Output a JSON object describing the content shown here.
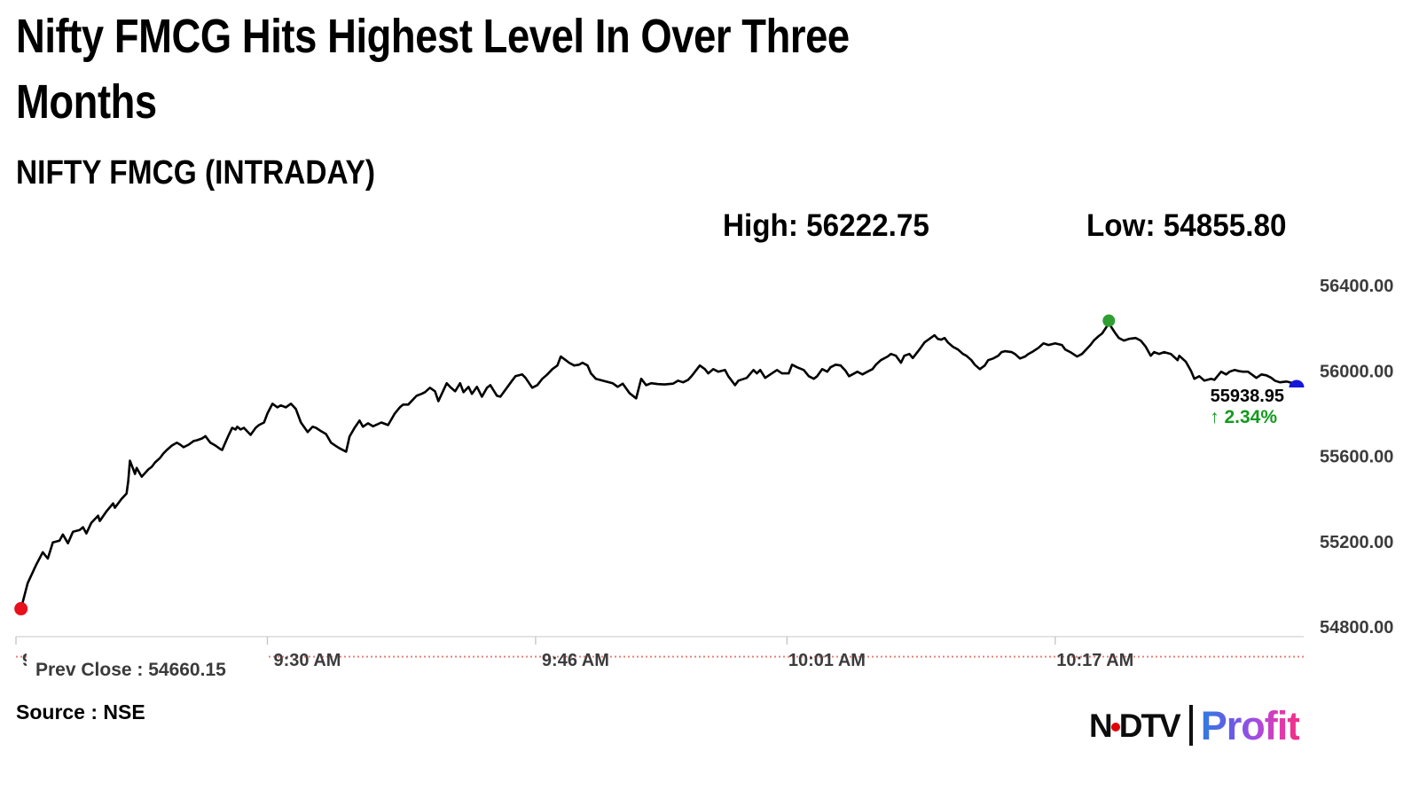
{
  "header": {
    "title_line1": "Nifty FMCG Hits Highest Level In Over Three",
    "title_line2": "Months",
    "subtitle": "NIFTY FMCG (INTRADAY)"
  },
  "stats": {
    "high": "High: 56222.75",
    "low": "Low: 54855.80"
  },
  "annotation": {
    "last_value": "55938.95",
    "change": "↑ 2.34%"
  },
  "footer": {
    "source": "Source : NSE"
  },
  "logo": {
    "ndtv_n": "N",
    "ndtv_dtv": "DTV",
    "profit": "Profit"
  },
  "colors": {
    "line": "#000000",
    "axis": "#d2d2d2",
    "tick": "#c4c4c4",
    "axis_label": "#3c3c3c",
    "prev_close_line": "#e2837b",
    "prev_close_text": "#3a3a3a",
    "first_marker": "#e8101c",
    "high_marker": "#2f9e33",
    "last_marker": "#1518d8",
    "change_green": "#149a1e",
    "profit_gradient_start": "#2e7de0",
    "profit_gradient_end": "#f42e86"
  },
  "chart_data": {
    "type": "line",
    "title": "NIFTY FMCG (INTRADAY)",
    "grid": false,
    "legend": "none",
    "line_color": "#000000",
    "y_axis": {
      "side": "right",
      "ticks": [
        56400,
        56000,
        55600,
        55200,
        54800
      ],
      "ylim": [
        54660,
        56440
      ]
    },
    "x_axis": {
      "unit": "minutes after 9:15 AM",
      "total_minutes": 77,
      "ticks": [
        {
          "min": 0,
          "label": "9:15 AM"
        },
        {
          "min": 15,
          "label": "9:30 AM"
        },
        {
          "min": 31,
          "label": "9:46 AM"
        },
        {
          "min": 46,
          "label": "10:01 AM"
        },
        {
          "min": 62,
          "label": "10:17 AM"
        }
      ]
    },
    "high": 56222.75,
    "low": 54855.8,
    "last": 55938.95,
    "change_pct": 2.34,
    "prev_close": 54660.15,
    "prev_close_label": "Prev Close : 54660.15",
    "series_units": "[minutes_after_915, index_value]",
    "series": [
      [
        0.3,
        54885
      ],
      [
        0.7,
        55005
      ],
      [
        1.2,
        55090
      ],
      [
        1.4,
        55120
      ],
      [
        1.6,
        55150
      ],
      [
        1.9,
        55120
      ],
      [
        2.2,
        55196
      ],
      [
        2.6,
        55204
      ],
      [
        2.8,
        55233
      ],
      [
        3.1,
        55192
      ],
      [
        3.4,
        55246
      ],
      [
        3.8,
        55254
      ],
      [
        4.0,
        55267
      ],
      [
        4.2,
        55238
      ],
      [
        4.5,
        55288
      ],
      [
        4.9,
        55321
      ],
      [
        5.0,
        55296
      ],
      [
        5.4,
        55342
      ],
      [
        5.8,
        55379
      ],
      [
        5.9,
        55358
      ],
      [
        6.3,
        55400
      ],
      [
        6.6,
        55425
      ],
      [
        6.7,
        55483
      ],
      [
        6.8,
        55579
      ],
      [
        7.0,
        55538
      ],
      [
        7.1,
        55517
      ],
      [
        7.2,
        55545
      ],
      [
        7.4,
        55517
      ],
      [
        7.5,
        55504
      ],
      [
        7.9,
        55538
      ],
      [
        8.1,
        55550
      ],
      [
        8.3,
        55571
      ],
      [
        8.6,
        55592
      ],
      [
        8.8,
        55613
      ],
      [
        9.0,
        55629
      ],
      [
        9.3,
        55650
      ],
      [
        9.6,
        55663
      ],
      [
        9.8,
        55654
      ],
      [
        10.0,
        55642
      ],
      [
        10.3,
        55654
      ],
      [
        10.6,
        55671
      ],
      [
        10.8,
        55675
      ],
      [
        11.1,
        55683
      ],
      [
        11.3,
        55694
      ],
      [
        11.6,
        55663
      ],
      [
        11.9,
        55650
      ],
      [
        12.2,
        55633
      ],
      [
        12.3,
        55629
      ],
      [
        12.5,
        55665
      ],
      [
        12.7,
        55700
      ],
      [
        12.9,
        55733
      ],
      [
        13.1,
        55725
      ],
      [
        13.2,
        55738
      ],
      [
        13.4,
        55725
      ],
      [
        13.6,
        55733
      ],
      [
        13.9,
        55708
      ],
      [
        14.0,
        55700
      ],
      [
        14.3,
        55733
      ],
      [
        14.5,
        55746
      ],
      [
        14.8,
        55758
      ],
      [
        15.0,
        55800
      ],
      [
        15.3,
        55846
      ],
      [
        15.6,
        55829
      ],
      [
        15.8,
        55838
      ],
      [
        16.1,
        55829
      ],
      [
        16.4,
        55846
      ],
      [
        16.7,
        55821
      ],
      [
        17.0,
        55758
      ],
      [
        17.4,
        55713
      ],
      [
        17.7,
        55738
      ],
      [
        17.9,
        55733
      ],
      [
        18.2,
        55717
      ],
      [
        18.5,
        55704
      ],
      [
        18.8,
        55663
      ],
      [
        19.2,
        55642
      ],
      [
        19.4,
        55633
      ],
      [
        19.7,
        55621
      ],
      [
        19.9,
        55692
      ],
      [
        20.2,
        55733
      ],
      [
        20.5,
        55767
      ],
      [
        20.7,
        55738
      ],
      [
        21.0,
        55754
      ],
      [
        21.3,
        55740
      ],
      [
        21.8,
        55758
      ],
      [
        22.2,
        55746
      ],
      [
        22.6,
        55800
      ],
      [
        22.9,
        55829
      ],
      [
        23.1,
        55842
      ],
      [
        23.4,
        55842
      ],
      [
        23.9,
        55883
      ],
      [
        24.2,
        55892
      ],
      [
        24.4,
        55900
      ],
      [
        24.7,
        55921
      ],
      [
        25.0,
        55904
      ],
      [
        25.2,
        55858
      ],
      [
        25.7,
        55942
      ],
      [
        25.9,
        55925
      ],
      [
        26.2,
        55904
      ],
      [
        26.5,
        55942
      ],
      [
        26.7,
        55900
      ],
      [
        27.0,
        55925
      ],
      [
        27.2,
        55892
      ],
      [
        27.5,
        55925
      ],
      [
        27.8,
        55879
      ],
      [
        28.1,
        55921
      ],
      [
        28.3,
        55933
      ],
      [
        28.7,
        55883
      ],
      [
        28.9,
        55879
      ],
      [
        29.6,
        55954
      ],
      [
        29.8,
        55975
      ],
      [
        30.2,
        55983
      ],
      [
        30.4,
        55967
      ],
      [
        30.8,
        55921
      ],
      [
        31.1,
        55933
      ],
      [
        31.4,
        55963
      ],
      [
        31.7,
        55983
      ],
      [
        32.0,
        56008
      ],
      [
        32.3,
        56025
      ],
      [
        32.5,
        56067
      ],
      [
        32.8,
        56050
      ],
      [
        33.0,
        56038
      ],
      [
        33.3,
        56025
      ],
      [
        33.6,
        56029
      ],
      [
        33.8,
        56038
      ],
      [
        34.1,
        56025
      ],
      [
        34.3,
        55988
      ],
      [
        34.6,
        55963
      ],
      [
        35.0,
        55954
      ],
      [
        35.6,
        55942
      ],
      [
        35.9,
        55925
      ],
      [
        36.2,
        55940
      ],
      [
        36.6,
        55896
      ],
      [
        37.0,
        55871
      ],
      [
        37.3,
        55963
      ],
      [
        37.6,
        55933
      ],
      [
        37.9,
        55942
      ],
      [
        38.3,
        55938
      ],
      [
        38.7,
        55936
      ],
      [
        39.2,
        55940
      ],
      [
        39.5,
        55954
      ],
      [
        39.8,
        55946
      ],
      [
        40.1,
        55958
      ],
      [
        40.3,
        55975
      ],
      [
        40.8,
        56025
      ],
      [
        41.1,
        56008
      ],
      [
        41.3,
        55988
      ],
      [
        41.6,
        56008
      ],
      [
        41.9,
        55996
      ],
      [
        42.3,
        56004
      ],
      [
        42.5,
        55975
      ],
      [
        42.9,
        55933
      ],
      [
        43.1,
        55954
      ],
      [
        43.6,
        55967
      ],
      [
        44.0,
        56004
      ],
      [
        44.2,
        55988
      ],
      [
        44.4,
        56004
      ],
      [
        44.7,
        55967
      ],
      [
        45.0,
        55983
      ],
      [
        45.4,
        56004
      ],
      [
        45.7,
        55988
      ],
      [
        46.1,
        55988
      ],
      [
        46.3,
        56029
      ],
      [
        46.6,
        56017
      ],
      [
        47.0,
        56004
      ],
      [
        47.3,
        55975
      ],
      [
        47.6,
        55963
      ],
      [
        47.8,
        55975
      ],
      [
        48.1,
        56008
      ],
      [
        48.4,
        55996
      ],
      [
        48.6,
        56017
      ],
      [
        48.9,
        56029
      ],
      [
        49.2,
        56025
      ],
      [
        49.5,
        56000
      ],
      [
        49.7,
        55975
      ],
      [
        49.9,
        55983
      ],
      [
        50.2,
        55996
      ],
      [
        50.5,
        55983
      ],
      [
        50.8,
        55996
      ],
      [
        51.1,
        56008
      ],
      [
        51.3,
        56029
      ],
      [
        51.6,
        56050
      ],
      [
        52.0,
        56067
      ],
      [
        52.2,
        56079
      ],
      [
        52.5,
        56071
      ],
      [
        52.8,
        56038
      ],
      [
        53.0,
        56071
      ],
      [
        53.3,
        56079
      ],
      [
        53.5,
        56060
      ],
      [
        53.9,
        56100
      ],
      [
        54.2,
        56133
      ],
      [
        54.8,
        56167
      ],
      [
        55.0,
        56150
      ],
      [
        55.2,
        56146
      ],
      [
        55.4,
        56154
      ],
      [
        55.6,
        56133
      ],
      [
        55.9,
        56113
      ],
      [
        56.2,
        56100
      ],
      [
        56.5,
        56079
      ],
      [
        56.7,
        56071
      ],
      [
        57.0,
        56050
      ],
      [
        57.2,
        56029
      ],
      [
        57.5,
        56008
      ],
      [
        57.8,
        56025
      ],
      [
        58.0,
        56050
      ],
      [
        58.3,
        56058
      ],
      [
        58.6,
        56071
      ],
      [
        58.8,
        56088
      ],
      [
        59.0,
        56092
      ],
      [
        59.4,
        56088
      ],
      [
        59.6,
        56079
      ],
      [
        59.9,
        56058
      ],
      [
        60.2,
        56067
      ],
      [
        60.4,
        56079
      ],
      [
        60.7,
        56092
      ],
      [
        61.0,
        56108
      ],
      [
        61.3,
        56129
      ],
      [
        61.6,
        56121
      ],
      [
        62.0,
        56129
      ],
      [
        62.4,
        56121
      ],
      [
        62.6,
        56100
      ],
      [
        62.9,
        56088
      ],
      [
        63.3,
        56067
      ],
      [
        63.6,
        56079
      ],
      [
        64.1,
        56121
      ],
      [
        64.3,
        56142
      ],
      [
        64.6,
        56163
      ],
      [
        64.8,
        56175
      ],
      [
        65.2,
        56222.75
      ],
      [
        65.6,
        56175
      ],
      [
        65.8,
        56154
      ],
      [
        66.1,
        56142
      ],
      [
        66.4,
        56150
      ],
      [
        66.8,
        56154
      ],
      [
        67.1,
        56142
      ],
      [
        67.4,
        56113
      ],
      [
        67.7,
        56071
      ],
      [
        67.9,
        56088
      ],
      [
        68.2,
        56079
      ],
      [
        68.5,
        56088
      ],
      [
        68.9,
        56079
      ],
      [
        69.3,
        56050
      ],
      [
        69.4,
        56071
      ],
      [
        69.8,
        56042
      ],
      [
        70.1,
        56000
      ],
      [
        70.3,
        55963
      ],
      [
        70.6,
        55975
      ],
      [
        70.9,
        55954
      ],
      [
        71.3,
        55963
      ],
      [
        71.5,
        55958
      ],
      [
        71.9,
        55996
      ],
      [
        72.2,
        55983
      ],
      [
        72.4,
        55996
      ],
      [
        72.7,
        56004
      ],
      [
        73.0,
        55998
      ],
      [
        73.2,
        55996
      ],
      [
        73.5,
        55996
      ],
      [
        73.8,
        55979
      ],
      [
        74.0,
        55967
      ],
      [
        74.3,
        55983
      ],
      [
        74.6,
        55979
      ],
      [
        74.9,
        55967
      ],
      [
        75.1,
        55954
      ],
      [
        75.4,
        55946
      ],
      [
        75.8,
        55950
      ],
      [
        76.1,
        55944
      ],
      [
        76.4,
        55938.95
      ]
    ]
  }
}
